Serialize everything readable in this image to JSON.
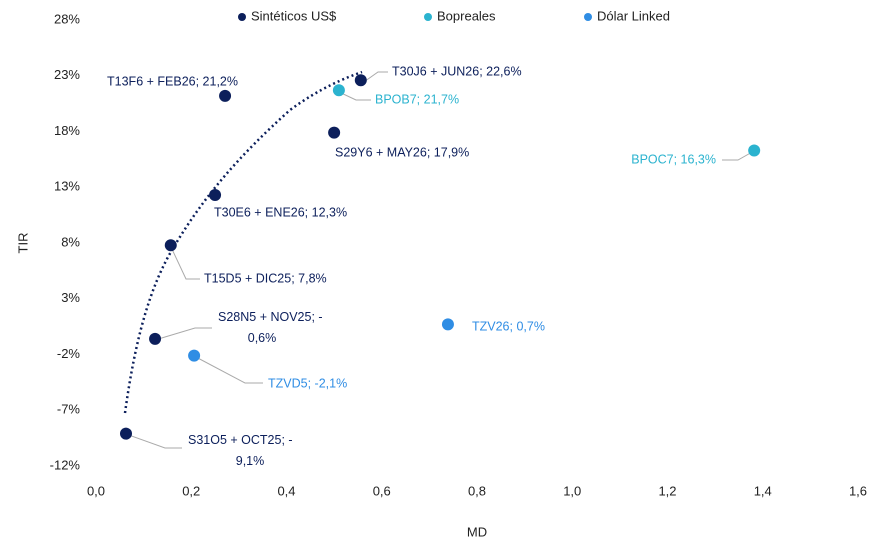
{
  "chart_data": {
    "type": "scatter",
    "x_label": "MD",
    "y_label": "TIR",
    "xlim": [
      0,
      1.6
    ],
    "xticks": [
      {
        "value": 0,
        "label": "0,0"
      },
      {
        "value": 0.2,
        "label": "0,2"
      },
      {
        "value": 0.4,
        "label": "0,4"
      },
      {
        "value": 0.6,
        "label": "0,6"
      },
      {
        "value": 0.8,
        "label": "0,8"
      },
      {
        "value": 1.0,
        "label": "1,0"
      },
      {
        "value": 1.2,
        "label": "1,2"
      },
      {
        "value": 1.4,
        "label": "1,4"
      },
      {
        "value": 1.6,
        "label": "1,6"
      }
    ],
    "ylim": [
      -12,
      28
    ],
    "yticks": [
      {
        "value": -12,
        "label": "-12%"
      },
      {
        "value": -7,
        "label": "-7%"
      },
      {
        "value": -2,
        "label": "-2%"
      },
      {
        "value": 3,
        "label": "3%"
      },
      {
        "value": 8,
        "label": "8%"
      },
      {
        "value": 13,
        "label": "13%"
      },
      {
        "value": 18,
        "label": "18%"
      },
      {
        "value": 23,
        "label": "23%"
      },
      {
        "value": 28,
        "label": "28%"
      }
    ],
    "legend": "top",
    "series": [
      {
        "name": "Sintéticos US$",
        "color": "#0c1f5b",
        "x": [
          0.063,
          0.124,
          0.157,
          0.25,
          0.271,
          0.5,
          0.556
        ],
        "values": [
          -9.1,
          -0.6,
          7.8,
          12.3,
          21.2,
          17.9,
          22.6
        ],
        "value_labels": [
          "S31O5 + OCT25; -9,1%",
          "S28N5 + NOV25; -0,6%",
          "T15D5 + DIC25; 7,8%",
          "T30E6 + ENE26; 12,3%",
          "T13F6 + FEB26; 21,2%",
          "S29Y6 + MAY26; 17,9%",
          "T30J6 + JUN26; 22,6%"
        ]
      },
      {
        "name": "Bopreales",
        "color": "#2bb3cf",
        "x": [
          0.51,
          1.382
        ],
        "values": [
          21.7,
          16.3
        ],
        "value_labels": [
          "BPOB7; 21,7%",
          "BPOC7; 16,3%"
        ]
      },
      {
        "name": "Dólar Linked",
        "color": "#2f8de4",
        "x": [
          0.206,
          0.739
        ],
        "values": [
          -2.1,
          0.7
        ],
        "value_labels": [
          "TZVD5; -2,1%",
          "TZV26; 0,7%"
        ]
      }
    ]
  }
}
